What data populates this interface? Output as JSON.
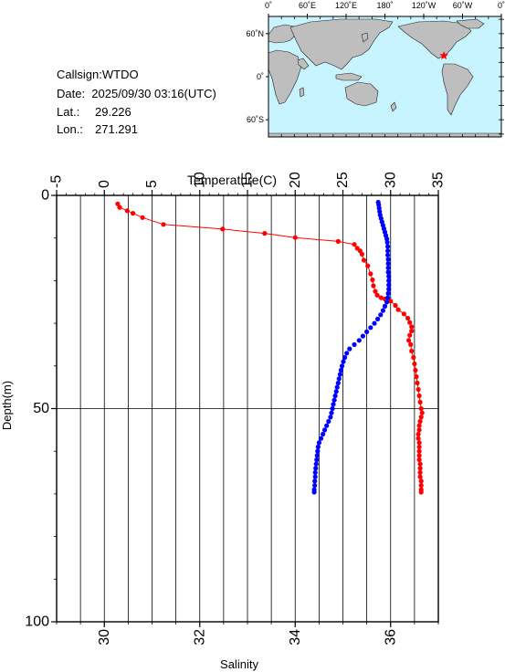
{
  "info": {
    "callsign": "Callsign:WTDO",
    "date": "Date:  2025/09/30 03:16(UTC)",
    "lat_label": "Lat.:",
    "lat_value": "29.226",
    "lon_label": "Lon.:",
    "lon_value": "271.291"
  },
  "map": {
    "top_labels": [
      "0˚",
      "60˚E",
      "120˚E",
      "180˚",
      "120˚W",
      "60˚W",
      "0˚"
    ],
    "left_labels": [
      "60˚N",
      "0˚",
      "60˚S"
    ],
    "ocean_color": "#c8f4ff",
    "land_color": "#bebebe",
    "marker_color": "#ff0000",
    "marker_icon": "star-icon"
  },
  "chart_data": {
    "type": "line",
    "grid": true,
    "y": {
      "label": "Depth(m)",
      "range": [
        0,
        100
      ],
      "inverted": true,
      "ticks": [
        "0",
        "50",
        "100"
      ]
    },
    "x_top": {
      "label": "Temperature(C)",
      "range": [
        -5,
        35
      ],
      "ticks": [
        "-5",
        "0",
        "5",
        "10",
        "15",
        "20",
        "25",
        "30",
        "35"
      ]
    },
    "x_bottom": {
      "label": "Salinity",
      "range": [
        29,
        37
      ],
      "ticks": [
        "30",
        "32",
        "34",
        "36"
      ]
    },
    "series": [
      {
        "axis": "temperature",
        "color": "#ff0000",
        "line": true,
        "points": [
          [
            1.4,
            2.0
          ],
          [
            1.6,
            2.8
          ],
          [
            2.4,
            3.6
          ],
          [
            3.0,
            4.2
          ],
          [
            4.0,
            5.2
          ],
          [
            6.2,
            6.8
          ],
          [
            12.4,
            7.9
          ],
          [
            16.8,
            8.9
          ],
          [
            20.0,
            9.9
          ],
          [
            24.5,
            10.8
          ],
          [
            26.2,
            11.5
          ],
          [
            26.5,
            12.4
          ],
          [
            26.8,
            13.0
          ],
          [
            27.0,
            13.8
          ],
          [
            27.2,
            15.2
          ],
          [
            27.6,
            16.5
          ],
          [
            27.9,
            18.4
          ],
          [
            28.1,
            19.8
          ],
          [
            28.2,
            21.2
          ],
          [
            28.4,
            22.5
          ],
          [
            28.6,
            23.4
          ],
          [
            29.0,
            24.0
          ],
          [
            29.4,
            24.3
          ],
          [
            30.0,
            24.8
          ],
          [
            30.5,
            25.8
          ],
          [
            30.8,
            26.8
          ],
          [
            31.4,
            27.8
          ],
          [
            31.8,
            28.8
          ],
          [
            32.0,
            29.8
          ],
          [
            32.2,
            30.8
          ],
          [
            32.2,
            31.8
          ],
          [
            32.0,
            32.8
          ],
          [
            31.9,
            34.0
          ],
          [
            32.1,
            35.0
          ],
          [
            32.2,
            36.5
          ],
          [
            32.4,
            38.0
          ],
          [
            32.5,
            39.5
          ],
          [
            32.6,
            41.0
          ],
          [
            32.7,
            42.5
          ],
          [
            32.8,
            44.0
          ],
          [
            32.9,
            45.5
          ],
          [
            33.0,
            47.0
          ],
          [
            33.1,
            48.5
          ],
          [
            33.2,
            50.0
          ],
          [
            33.3,
            51.0
          ],
          [
            33.2,
            52.0
          ],
          [
            33.1,
            53.0
          ],
          [
            33.0,
            54.0
          ],
          [
            33.0,
            55.0
          ],
          [
            32.9,
            56.0
          ],
          [
            32.9,
            57.0
          ],
          [
            33.0,
            58.0
          ],
          [
            33.0,
            59.0
          ],
          [
            33.0,
            60.0
          ],
          [
            33.0,
            61.0
          ],
          [
            33.0,
            62.0
          ],
          [
            33.1,
            63.0
          ],
          [
            33.1,
            64.0
          ],
          [
            33.1,
            65.0
          ],
          [
            33.1,
            66.0
          ],
          [
            33.2,
            67.0
          ],
          [
            33.2,
            68.0
          ],
          [
            33.2,
            69.0
          ],
          [
            33.2,
            69.6
          ]
        ]
      },
      {
        "axis": "salinity",
        "color": "#0000ff",
        "line": false,
        "points": [
          [
            35.74,
            1.6
          ],
          [
            35.75,
            2.2
          ],
          [
            35.76,
            3.0
          ],
          [
            35.77,
            3.8
          ],
          [
            35.78,
            4.6
          ],
          [
            35.8,
            5.4
          ],
          [
            35.82,
            6.2
          ],
          [
            35.84,
            7.0
          ],
          [
            35.86,
            7.8
          ],
          [
            35.88,
            8.6
          ],
          [
            35.9,
            9.4
          ],
          [
            35.92,
            10.2
          ],
          [
            35.93,
            11.0
          ],
          [
            35.94,
            12.0
          ],
          [
            35.94,
            13.0
          ],
          [
            35.94,
            14.0
          ],
          [
            35.95,
            15.0
          ],
          [
            35.95,
            16.0
          ],
          [
            35.95,
            17.0
          ],
          [
            35.95,
            18.0
          ],
          [
            35.96,
            19.0
          ],
          [
            35.96,
            20.0
          ],
          [
            35.96,
            21.0
          ],
          [
            35.96,
            22.0
          ],
          [
            35.95,
            23.0
          ],
          [
            35.94,
            24.0
          ],
          [
            35.92,
            25.0
          ],
          [
            35.88,
            26.0
          ],
          [
            35.84,
            27.0
          ],
          [
            35.79,
            28.0
          ],
          [
            35.73,
            29.0
          ],
          [
            35.66,
            30.0
          ],
          [
            35.58,
            31.0
          ],
          [
            35.5,
            32.0
          ],
          [
            35.42,
            33.0
          ],
          [
            35.34,
            34.0
          ],
          [
            35.24,
            35.0
          ],
          [
            35.14,
            36.0
          ],
          [
            35.08,
            37.0
          ],
          [
            35.04,
            38.0
          ],
          [
            35.01,
            39.0
          ],
          [
            34.98,
            40.0
          ],
          [
            34.96,
            41.0
          ],
          [
            34.94,
            42.0
          ],
          [
            34.92,
            43.0
          ],
          [
            34.9,
            44.0
          ],
          [
            34.88,
            45.0
          ],
          [
            34.86,
            46.0
          ],
          [
            34.84,
            47.0
          ],
          [
            34.82,
            48.0
          ],
          [
            34.8,
            49.0
          ],
          [
            34.78,
            50.0
          ],
          [
            34.76,
            51.0
          ],
          [
            34.74,
            52.0
          ],
          [
            34.7,
            53.0
          ],
          [
            34.66,
            54.0
          ],
          [
            34.62,
            55.0
          ],
          [
            34.58,
            56.0
          ],
          [
            34.54,
            57.0
          ],
          [
            34.5,
            58.0
          ],
          [
            34.48,
            59.0
          ],
          [
            34.47,
            60.0
          ],
          [
            34.46,
            61.0
          ],
          [
            34.45,
            62.0
          ],
          [
            34.44,
            63.0
          ],
          [
            34.43,
            64.0
          ],
          [
            34.42,
            65.0
          ],
          [
            34.42,
            66.0
          ],
          [
            34.41,
            67.0
          ],
          [
            34.41,
            68.0
          ],
          [
            34.4,
            69.0
          ],
          [
            34.4,
            69.6
          ]
        ]
      }
    ]
  }
}
